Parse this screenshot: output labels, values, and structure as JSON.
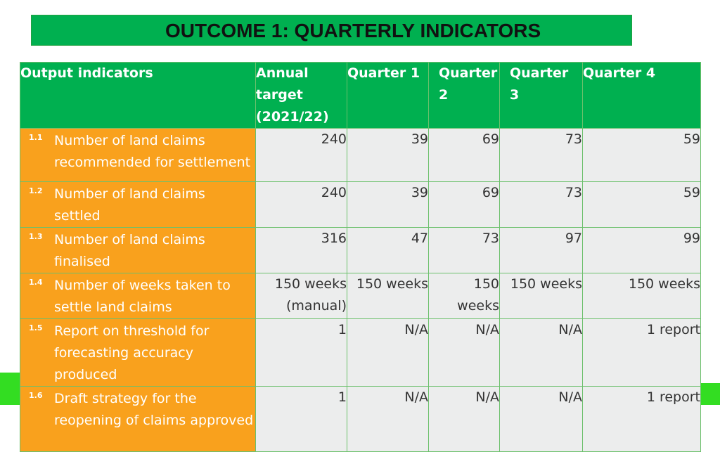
{
  "title": "OUTCOME 1: QUARTERLY INDICATORS",
  "colors": {
    "header_green": "#00b050",
    "indicator_orange": "#f9a11d",
    "value_grey": "#eceded",
    "accent_green": "#33dd22"
  },
  "columns": [
    "Output indicators",
    "Annual target (2021/22)",
    "Quarter 1",
    "Quarter 2",
    "Quarter 3",
    "Quarter 4"
  ],
  "rows": [
    {
      "num": "1.1",
      "indicator": "Number of land claims recommended for settlement",
      "annual": "240",
      "q1": "39",
      "q2": "69",
      "q3": "73",
      "q4": "59"
    },
    {
      "num": "1.2",
      "indicator": "Number of land claims settled",
      "annual": "240",
      "q1": "39",
      "q2": "69",
      "q3": "73",
      "q4": "59"
    },
    {
      "num": "1.3",
      "indicator": "Number of land claims finalised",
      "annual": "316",
      "q1": "47",
      "q2": "73",
      "q3": "97",
      "q4": "99"
    },
    {
      "num": "1.4",
      "indicator": "Number of weeks taken to settle land claims",
      "annual": "150 weeks (manual)",
      "q1": "150 weeks",
      "q2": "150 weeks",
      "q3": "150 weeks",
      "q4": "150 weeks"
    },
    {
      "num": "1.5",
      "indicator": "Report on threshold for forecasting accuracy produced",
      "annual": "1",
      "q1": "N/A",
      "q2": "N/A",
      "q3": "N/A",
      "q4": "1 report"
    },
    {
      "num": "1.6",
      "indicator": "Draft strategy for the reopening of claims approved",
      "annual": "1",
      "q1": "N/A",
      "q2": "N/A",
      "q3": "N/A",
      "q4": "1 report"
    }
  ]
}
